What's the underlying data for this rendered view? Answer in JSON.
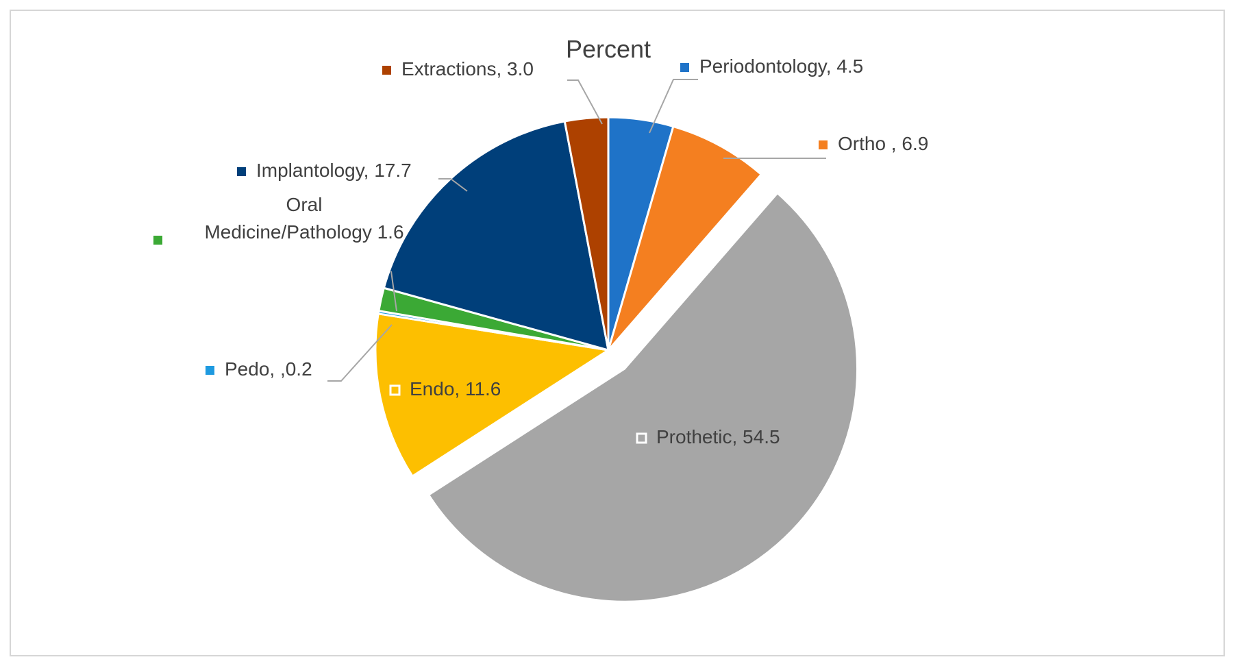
{
  "chart_data": {
    "type": "pie",
    "title": "Percent",
    "slices": [
      {
        "name": "Periodontology",
        "value": 4.5,
        "label": "Periodontology, 4.5",
        "color": "#1f73c8"
      },
      {
        "name": "Ortho",
        "value": 6.9,
        "label": "Ortho , 6.9",
        "color": "#f47f20"
      },
      {
        "name": "Prothetic",
        "value": 54.5,
        "label": "Prothetic, 54.5",
        "color": "#a6a6a6"
      },
      {
        "name": "Endo",
        "value": 11.6,
        "label": "Endo, 11.6",
        "color": "#fdbf00"
      },
      {
        "name": "Pedo",
        "value": 0.2,
        "label": "Pedo, ,0.2",
        "color": "#1e9ae0"
      },
      {
        "name": "Oral Medicine/Pathology",
        "value": 1.6,
        "label_lines": [
          "Oral",
          "Medicine/Pathology 1.6"
        ],
        "color": "#3ba935"
      },
      {
        "name": "Implantology",
        "value": 17.7,
        "label": "Implantology, 17.7",
        "color": "#003f7a"
      },
      {
        "name": "Extractions",
        "value": 3.0,
        "label": "Extractions, 3.0",
        "color": "#ad4100"
      }
    ],
    "exploded": [
      "Prothetic"
    ],
    "legend": "none"
  }
}
